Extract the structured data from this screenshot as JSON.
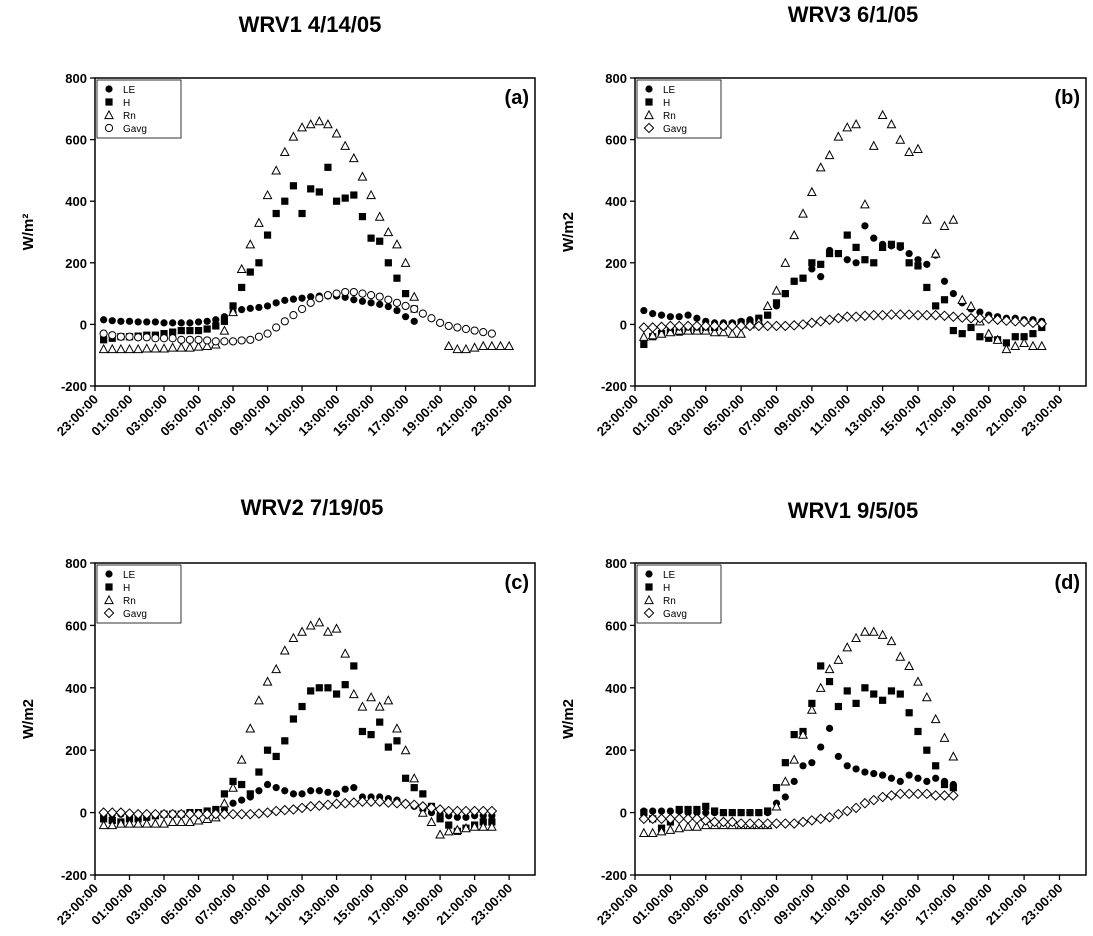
{
  "chart_data": [
    {
      "type": "scatter",
      "title": "WRV1 4/14/05",
      "panel_label": "(a)",
      "ylabel": "W/m²",
      "ylim": [
        -200,
        800
      ],
      "yticks": [
        "-200",
        "0",
        "200",
        "400",
        "600",
        "800"
      ],
      "xticks": [
        "23:00:00",
        "01:00:00",
        "03:00:00",
        "05:00:00",
        "07:00:00",
        "09:00:00",
        "11:00:00",
        "13:00:00",
        "15:00:00",
        "17:00:00",
        "19:00:00",
        "21:00:00",
        "23:00:00"
      ],
      "x_start": 0.5,
      "x_step": 0.5,
      "legend_position": "top-left",
      "series": [
        {
          "name": "LE",
          "marker": "circle-filled",
          "values": [
            15,
            12,
            10,
            10,
            8,
            8,
            8,
            5,
            5,
            5,
            5,
            8,
            10,
            15,
            25,
            40,
            48,
            52,
            55,
            60,
            70,
            78,
            82,
            85,
            90,
            92,
            92,
            92,
            88,
            80,
            75,
            70,
            65,
            58,
            45,
            25,
            10
          ]
        },
        {
          "name": "H",
          "marker": "square-filled",
          "values": [
            -50,
            -45,
            -40,
            -40,
            -38,
            -35,
            -35,
            -30,
            -25,
            -20,
            -20,
            -20,
            -15,
            -5,
            10,
            60,
            120,
            170,
            200,
            290,
            360,
            400,
            450,
            360,
            440,
            430,
            510,
            400,
            410,
            420,
            350,
            280,
            270,
            200,
            150,
            100,
            50
          ]
        },
        {
          "name": "Rn",
          "marker": "triangle-open",
          "values": [
            -80,
            -80,
            -80,
            -80,
            -80,
            -78,
            -78,
            -78,
            -75,
            -75,
            -75,
            -72,
            -70,
            -65,
            -20,
            40,
            180,
            260,
            330,
            420,
            500,
            560,
            610,
            640,
            650,
            660,
            650,
            620,
            580,
            540,
            480,
            420,
            350,
            300,
            260,
            200,
            90,
            null,
            null,
            null,
            -70,
            -80,
            -80,
            -75,
            -70,
            -70,
            -70,
            -70
          ]
        },
        {
          "name": "Gavg",
          "marker": "circle-open",
          "values": [
            -30,
            -35,
            -40,
            -40,
            -42,
            -42,
            -45,
            -45,
            -45,
            -50,
            -50,
            -50,
            -52,
            -55,
            -55,
            -55,
            -52,
            -50,
            -40,
            -30,
            -10,
            10,
            30,
            50,
            70,
            85,
            95,
            100,
            105,
            105,
            100,
            95,
            90,
            80,
            70,
            60,
            50,
            35,
            20,
            5,
            -5,
            -10,
            -15,
            -20,
            -25,
            -30
          ]
        }
      ]
    },
    {
      "type": "scatter",
      "title": "WRV3 6/1/05",
      "panel_label": "(b)",
      "ylabel": "W/m2",
      "ylim": [
        -200,
        800
      ],
      "yticks": [
        "-200",
        "0",
        "200",
        "400",
        "600",
        "800"
      ],
      "xticks": [
        "23:00:00",
        "01:00:00",
        "03:00:00",
        "05:00:00",
        "07:00:00",
        "09:00:00",
        "11:00:00",
        "13:00:00",
        "15:00:00",
        "17:00:00",
        "19:00:00",
        "21:00:00",
        "23:00:00"
      ],
      "x_start": 0.5,
      "x_step": 0.5,
      "legend_position": "top-left",
      "series": [
        {
          "name": "LE",
          "marker": "circle-filled",
          "values": [
            45,
            35,
            30,
            25,
            25,
            30,
            20,
            10,
            5,
            5,
            5,
            10,
            15,
            20,
            30,
            60,
            100,
            140,
            150,
            180,
            155,
            240,
            230,
            210,
            200,
            320,
            280,
            260,
            255,
            250,
            230,
            210,
            195,
            225,
            140,
            100,
            70,
            50,
            40,
            30,
            25,
            20,
            20,
            15,
            15,
            10
          ]
        },
        {
          "name": "H",
          "marker": "square-filled",
          "values": [
            -65,
            -40,
            -30,
            -25,
            -25,
            -20,
            -15,
            -10,
            -10,
            -5,
            0,
            5,
            5,
            20,
            30,
            70,
            100,
            140,
            150,
            200,
            195,
            230,
            230,
            290,
            250,
            210,
            200,
            250,
            260,
            255,
            200,
            190,
            120,
            60,
            80,
            -20,
            -30,
            -10,
            -40,
            -45,
            -50,
            -60,
            -40,
            -40,
            -30,
            -10
          ]
        },
        {
          "name": "Rn",
          "marker": "triangle-open",
          "values": [
            -40,
            -35,
            -30,
            -25,
            -20,
            -20,
            -20,
            -20,
            -25,
            -25,
            -30,
            -30,
            0,
            10,
            60,
            110,
            200,
            290,
            360,
            430,
            510,
            550,
            610,
            640,
            650,
            390,
            580,
            680,
            650,
            600,
            560,
            570,
            340,
            230,
            320,
            340,
            80,
            60,
            10,
            -30,
            -50,
            -80,
            -70,
            -60,
            -70,
            -70
          ]
        },
        {
          "name": "Gavg",
          "marker": "diamond-open",
          "values": [
            -10,
            -10,
            -8,
            -5,
            -5,
            -5,
            -5,
            -5,
            -5,
            -5,
            -5,
            -5,
            -5,
            -5,
            -5,
            -5,
            -5,
            -3,
            0,
            5,
            10,
            15,
            20,
            25,
            25,
            28,
            30,
            30,
            32,
            32,
            32,
            30,
            30,
            30,
            28,
            25,
            22,
            20,
            20,
            18,
            15,
            12,
            10,
            8,
            5,
            2
          ]
        }
      ]
    },
    {
      "type": "scatter",
      "title": "WRV2 7/19/05",
      "panel_label": "(c)",
      "ylabel": "W/m2",
      "ylim": [
        -200,
        800
      ],
      "yticks": [
        "-200",
        "0",
        "200",
        "400",
        "600",
        "800"
      ],
      "xticks": [
        "23:00:00",
        "01:00:00",
        "03:00:00",
        "05:00:00",
        "07:00:00",
        "09:00:00",
        "11:00:00",
        "13:00:00",
        "15:00:00",
        "17:00:00",
        "19:00:00",
        "21:00:00",
        "23:00:00"
      ],
      "x_start": 0.5,
      "x_step": 0.5,
      "legend_position": "top-left",
      "series": [
        {
          "name": "LE",
          "marker": "circle-filled",
          "values": [
            -5,
            -5,
            -5,
            -5,
            -5,
            -5,
            -5,
            -5,
            -5,
            -5,
            -5,
            -5,
            -5,
            -5,
            10,
            30,
            40,
            50,
            70,
            90,
            80,
            70,
            60,
            60,
            70,
            70,
            65,
            60,
            75,
            80,
            50,
            50,
            50,
            45,
            40,
            30,
            20,
            10,
            0,
            -5,
            -10,
            -15,
            -15,
            -10,
            -10,
            -10
          ]
        },
        {
          "name": "H",
          "marker": "square-filled",
          "values": [
            -20,
            -25,
            -30,
            -20,
            -20,
            -15,
            -10,
            -5,
            -5,
            -5,
            0,
            0,
            5,
            10,
            60,
            100,
            90,
            60,
            130,
            200,
            180,
            230,
            300,
            340,
            390,
            400,
            400,
            380,
            410,
            470,
            260,
            250,
            290,
            210,
            230,
            110,
            80,
            60,
            20,
            -20,
            -40,
            -60,
            -50,
            -40,
            -30,
            -30
          ]
        },
        {
          "name": "Rn",
          "marker": "triangle-open",
          "values": [
            -40,
            -40,
            -35,
            -35,
            -35,
            -35,
            -35,
            -35,
            -30,
            -30,
            -30,
            -25,
            -20,
            -15,
            30,
            80,
            170,
            270,
            360,
            420,
            460,
            520,
            560,
            580,
            600,
            610,
            580,
            590,
            510,
            380,
            340,
            370,
            340,
            360,
            270,
            200,
            110,
            0,
            -30,
            -70,
            -60,
            -55,
            -50,
            -45,
            -45,
            -45
          ]
        },
        {
          "name": "Gavg",
          "marker": "diamond-open",
          "values": [
            0,
            0,
            0,
            -3,
            -5,
            -5,
            -5,
            -5,
            -5,
            -5,
            -5,
            -5,
            -5,
            -5,
            -5,
            -5,
            -5,
            -5,
            -3,
            0,
            5,
            8,
            10,
            15,
            20,
            22,
            25,
            28,
            30,
            32,
            35,
            35,
            35,
            32,
            30,
            28,
            25,
            20,
            15,
            10,
            5,
            5,
            5,
            5,
            5,
            5
          ]
        }
      ]
    },
    {
      "type": "scatter",
      "title": "WRV1 9/5/05",
      "panel_label": "(d)",
      "ylabel": "W/m2",
      "ylim": [
        -200,
        800
      ],
      "yticks": [
        "-200",
        "0",
        "200",
        "400",
        "600",
        "800"
      ],
      "xticks": [
        "23:00:00",
        "01:00:00",
        "03:00:00",
        "05:00:00",
        "07:00:00",
        "09:00:00",
        "11:00:00",
        "13:00:00",
        "15:00:00",
        "17:00:00",
        "19:00:00",
        "21:00:00",
        "23:00:00"
      ],
      "x_start": 0.5,
      "x_step": 0.5,
      "legend_position": "top-left",
      "series": [
        {
          "name": "LE",
          "marker": "circle-filled",
          "values": [
            5,
            5,
            5,
            5,
            5,
            0,
            0,
            0,
            0,
            0,
            0,
            0,
            0,
            0,
            0,
            30,
            50,
            100,
            150,
            160,
            210,
            270,
            180,
            150,
            140,
            130,
            125,
            120,
            110,
            100,
            120,
            110,
            100,
            110,
            100,
            90
          ]
        },
        {
          "name": "H",
          "marker": "square-filled",
          "values": [
            0,
            -20,
            -50,
            -30,
            10,
            10,
            10,
            20,
            5,
            0,
            0,
            0,
            0,
            0,
            5,
            80,
            160,
            250,
            260,
            350,
            470,
            420,
            340,
            390,
            350,
            400,
            380,
            360,
            390,
            380,
            320,
            260,
            200,
            150,
            90,
            80
          ]
        },
        {
          "name": "Rn",
          "marker": "triangle-open",
          "values": [
            -65,
            -65,
            -60,
            -55,
            -50,
            -45,
            -45,
            -40,
            -40,
            -40,
            -40,
            -40,
            -40,
            -40,
            -40,
            20,
            100,
            170,
            250,
            330,
            400,
            460,
            490,
            530,
            560,
            580,
            580,
            570,
            550,
            500,
            470,
            420,
            370,
            300,
            240,
            180
          ]
        },
        {
          "name": "Gavg",
          "marker": "diamond-open",
          "values": [
            -20,
            -20,
            -20,
            -20,
            -20,
            -20,
            -20,
            -25,
            -30,
            -30,
            -30,
            -35,
            -35,
            -35,
            -35,
            -35,
            -35,
            -35,
            -30,
            -25,
            -20,
            -15,
            -5,
            5,
            15,
            30,
            40,
            50,
            55,
            60,
            60,
            60,
            60,
            55,
            55,
            55
          ]
        }
      ]
    }
  ]
}
